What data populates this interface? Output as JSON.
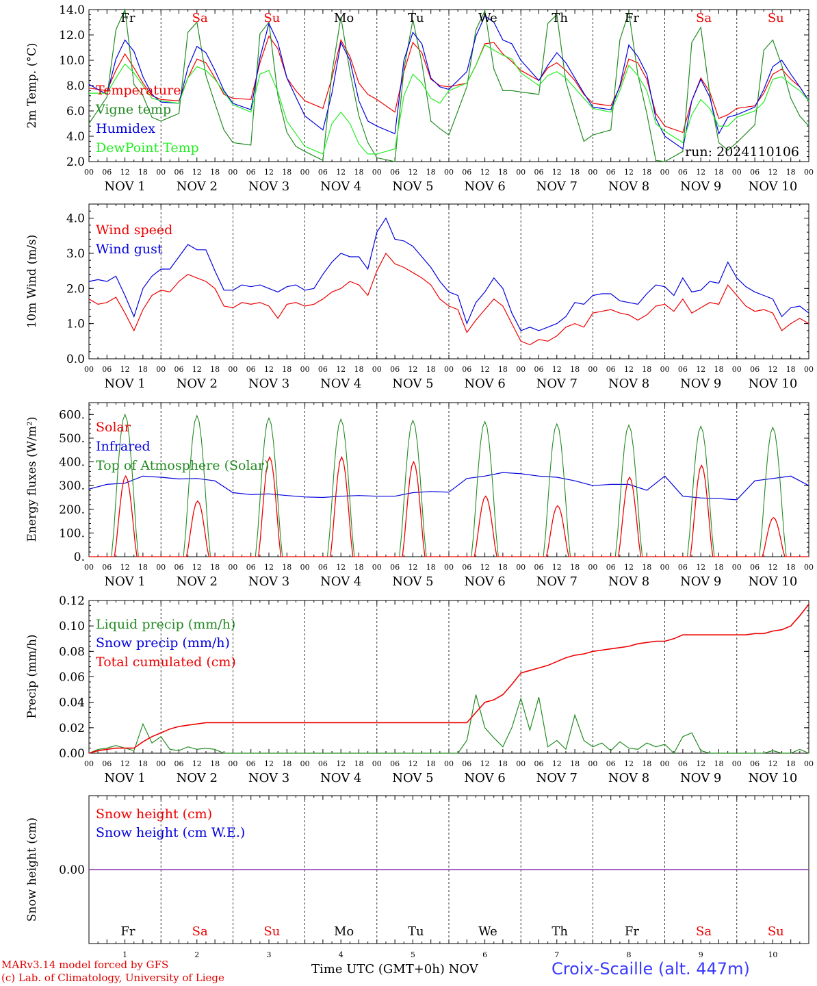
{
  "colors": {
    "red": "#ee0000",
    "green": "#228b22",
    "blue": "#0000dd",
    "lightgreen": "#22ee22",
    "purple": "#8833aa"
  },
  "days": [
    {
      "name": "Fr",
      "num": "1",
      "weekend": false
    },
    {
      "name": "Sa",
      "num": "2",
      "weekend": true
    },
    {
      "name": "Su",
      "num": "3",
      "weekend": true
    },
    {
      "name": "Mo",
      "num": "4",
      "weekend": false
    },
    {
      "name": "Tu",
      "num": "5",
      "weekend": false
    },
    {
      "name": "We",
      "num": "6",
      "weekend": false
    },
    {
      "name": "Th",
      "num": "7",
      "weekend": false
    },
    {
      "name": "Fr",
      "num": "8",
      "weekend": false
    },
    {
      "name": "Sa",
      "num": "9",
      "weekend": true
    },
    {
      "name": "Su",
      "num": "10",
      "weekend": true
    }
  ],
  "hour_ticks": [
    "00",
    "06",
    "12",
    "18"
  ],
  "month_label": "NOV",
  "run_label": "run: 2024110106",
  "footer": {
    "model": "MARv3.14 model forced by GFS",
    "lab": "(c) Lab. of Climatology, University of Liege",
    "xtitle": "Time UTC (GMT+0h)",
    "month": "NOV",
    "station": "Croix-Scaille (alt. 447m)"
  },
  "chart_data": [
    {
      "type": "line",
      "ylabel": "2m Temp. (°C)",
      "ylim": [
        2,
        14
      ],
      "yticks": [
        "2.0",
        "4.0",
        "6.0",
        "8.0",
        "10.0",
        "12.0",
        "14.0"
      ],
      "legend": [
        "Temperature",
        "Vigne temp",
        "Humidex",
        "DewPoint Temp"
      ],
      "x_hours": [
        0,
        6,
        9,
        12,
        15,
        18,
        21,
        24,
        30,
        33,
        36,
        39,
        42,
        45,
        48,
        54,
        57,
        60,
        63,
        66,
        69,
        72,
        78,
        81,
        84,
        87,
        90,
        93,
        96,
        102,
        105,
        108,
        111,
        114,
        117,
        120,
        126,
        129,
        132,
        135,
        138,
        141,
        144,
        150,
        153,
        156,
        159,
        162,
        165,
        168,
        174,
        177,
        180,
        183,
        186,
        189,
        192,
        198,
        201,
        204,
        207,
        210,
        213,
        216,
        222,
        225,
        228,
        231,
        234,
        237,
        240
      ],
      "series": [
        {
          "name": "Temperature",
          "color": "red",
          "values": [
            7.8,
            7.6,
            9.2,
            10.5,
            9.4,
            8.2,
            7.2,
            6.9,
            6.8,
            8.6,
            10.1,
            9.8,
            8.6,
            7.3,
            7.0,
            6.9,
            9.8,
            11.9,
            10.9,
            8.6,
            7.6,
            6.8,
            6.2,
            8.6,
            11.6,
            10.3,
            8.2,
            7.3,
            6.9,
            5.9,
            9.1,
            11.4,
            10.6,
            8.5,
            8.0,
            7.9,
            8.2,
            9.6,
            11.3,
            11.4,
            10.5,
            9.9,
            9.2,
            8.4,
            9.4,
            9.8,
            9.2,
            8.4,
            7.3,
            6.6,
            6.4,
            7.9,
            10.1,
            9.8,
            8.5,
            5.8,
            4.8,
            4.3,
            6.8,
            8.6,
            7.5,
            5.4,
            5.7,
            6.2,
            6.4,
            7.4,
            8.9,
            9.3,
            8.5,
            7.9,
            6.8
          ]
        },
        {
          "name": "Vigne temp",
          "color": "green",
          "values": [
            5.0,
            7.1,
            12.4,
            14.0,
            8.1,
            7.2,
            5.5,
            5.2,
            5.8,
            12.2,
            13.0,
            8.8,
            6.6,
            4.5,
            3.5,
            3.3,
            12.1,
            13.0,
            7.2,
            4.3,
            3.2,
            2.8,
            2.1,
            9.0,
            13.4,
            9.1,
            5.6,
            3.5,
            2.3,
            2.0,
            9.3,
            13.2,
            9.8,
            5.2,
            4.6,
            4.1,
            7.9,
            12.4,
            13.9,
            9.3,
            7.6,
            7.6,
            7.5,
            7.3,
            12.9,
            13.6,
            8.3,
            5.9,
            3.6,
            4.1,
            4.5,
            11.6,
            13.8,
            8.9,
            5.8,
            2.1,
            1.8,
            2.8,
            11.4,
            12.6,
            7.3,
            3.5,
            2.9,
            3.5,
            4.9,
            10.8,
            11.6,
            9.6,
            7.0,
            5.6,
            4.8
          ]
        },
        {
          "name": "Humidex",
          "color": "blue",
          "values": [
            8.1,
            7.3,
            10.1,
            11.6,
            10.7,
            8.7,
            7.3,
            6.7,
            6.6,
            9.4,
            11.1,
            10.6,
            9.2,
            7.6,
            6.6,
            6.1,
            10.2,
            12.9,
            11.4,
            8.6,
            7.1,
            5.6,
            4.5,
            7.4,
            11.4,
            10.0,
            6.8,
            5.2,
            4.8,
            4.2,
            10.0,
            12.2,
            11.3,
            8.6,
            7.9,
            7.7,
            9.1,
            11.9,
            13.5,
            13.0,
            11.6,
            11.3,
            10.0,
            8.4,
            9.6,
            10.6,
            9.8,
            8.6,
            7.4,
            6.3,
            6.1,
            8.0,
            11.2,
            10.3,
            8.9,
            5.4,
            4.0,
            3.0,
            6.8,
            8.5,
            7.1,
            4.2,
            5.5,
            5.7,
            6.3,
            7.7,
            9.5,
            10.0,
            8.9,
            7.9,
            6.8
          ]
        },
        {
          "name": "DewPoint Temp",
          "color": "lightgreen",
          "values": [
            7.4,
            7.4,
            8.6,
            9.7,
            9.0,
            8.0,
            7.0,
            6.8,
            6.6,
            8.6,
            9.5,
            9.2,
            8.5,
            7.5,
            6.5,
            5.9,
            8.9,
            9.2,
            7.5,
            5.2,
            4.2,
            3.2,
            2.6,
            5.0,
            5.9,
            5.0,
            3.4,
            2.6,
            2.6,
            3.0,
            7.2,
            8.9,
            8.2,
            7.0,
            6.6,
            7.6,
            8.2,
            9.6,
            11.2,
            10.8,
            10.4,
            10.1,
            9.0,
            8.0,
            8.8,
            9.1,
            8.6,
            7.8,
            7.0,
            6.2,
            5.9,
            7.6,
            9.6,
            8.8,
            7.6,
            5.0,
            4.4,
            3.5,
            5.7,
            6.9,
            6.2,
            4.8,
            4.8,
            5.5,
            6.0,
            6.7,
            8.5,
            8.7,
            8.1,
            7.6,
            6.8
          ]
        }
      ]
    },
    {
      "type": "line",
      "ylabel": "10m Wind (m/s)",
      "ylim": [
        0,
        4.4
      ],
      "yticks": [
        "0.0",
        "1.0",
        "2.0",
        "3.0",
        "4.0"
      ],
      "legend": [
        "Wind speed",
        "Wind gust"
      ],
      "x_hours": [
        0,
        3,
        6,
        9,
        12,
        15,
        18,
        21,
        24,
        27,
        30,
        33,
        36,
        39,
        42,
        45,
        48,
        51,
        54,
        57,
        60,
        63,
        66,
        69,
        72,
        75,
        78,
        81,
        84,
        87,
        90,
        93,
        96,
        99,
        102,
        105,
        108,
        111,
        114,
        117,
        120,
        123,
        126,
        129,
        132,
        135,
        138,
        141,
        144,
        147,
        150,
        153,
        156,
        159,
        162,
        165,
        168,
        171,
        174,
        177,
        180,
        183,
        186,
        189,
        192,
        195,
        198,
        201,
        204,
        207,
        210,
        213,
        216,
        219,
        222,
        225,
        228,
        231,
        234,
        237,
        240
      ],
      "series": [
        {
          "name": "Wind speed",
          "color": "red",
          "values": [
            1.7,
            1.55,
            1.6,
            1.75,
            1.3,
            0.8,
            1.4,
            1.8,
            1.95,
            1.9,
            2.2,
            2.4,
            2.3,
            2.2,
            2.0,
            1.5,
            1.45,
            1.6,
            1.55,
            1.6,
            1.5,
            1.15,
            1.55,
            1.6,
            1.5,
            1.55,
            1.7,
            1.9,
            2.0,
            2.2,
            2.1,
            1.8,
            2.5,
            3.0,
            2.7,
            2.6,
            2.45,
            2.3,
            2.1,
            1.7,
            1.5,
            1.4,
            0.75,
            1.1,
            1.4,
            1.7,
            1.5,
            1.0,
            0.5,
            0.4,
            0.55,
            0.5,
            0.65,
            0.9,
            1.0,
            0.9,
            1.3,
            1.35,
            1.4,
            1.3,
            1.25,
            1.1,
            1.25,
            1.5,
            1.55,
            1.35,
            1.7,
            1.3,
            1.45,
            1.6,
            1.55,
            2.1,
            1.8,
            1.5,
            1.35,
            1.4,
            1.3,
            0.8,
            1.0,
            1.15,
            1.0
          ]
        },
        {
          "name": "Wind gust",
          "color": "blue",
          "values": [
            2.2,
            2.25,
            2.2,
            2.35,
            1.8,
            1.2,
            2.0,
            2.35,
            2.55,
            2.55,
            2.9,
            3.25,
            3.1,
            3.1,
            2.5,
            1.95,
            1.95,
            2.1,
            2.05,
            2.1,
            2.0,
            1.9,
            2.05,
            2.1,
            1.95,
            2.0,
            2.4,
            2.75,
            3.0,
            2.9,
            2.9,
            2.55,
            3.6,
            4.0,
            3.4,
            3.35,
            3.2,
            2.9,
            2.6,
            2.2,
            1.9,
            1.8,
            1.0,
            1.6,
            1.9,
            2.3,
            2.0,
            1.3,
            0.8,
            0.9,
            0.8,
            0.9,
            1.0,
            1.2,
            1.6,
            1.55,
            1.8,
            1.85,
            1.85,
            1.65,
            1.6,
            1.55,
            1.85,
            2.1,
            2.05,
            1.8,
            2.3,
            1.9,
            1.95,
            2.2,
            2.15,
            2.75,
            2.3,
            2.05,
            1.9,
            1.8,
            1.7,
            1.2,
            1.45,
            1.5,
            1.3
          ]
        }
      ]
    },
    {
      "type": "line",
      "ylabel": "Energy fluxes (W/m²)",
      "ylim": [
        0,
        650
      ],
      "yticks": [
        "0.",
        "100.",
        "200.",
        "300.",
        "400.",
        "500.",
        "600."
      ],
      "legend": [
        "Solar",
        "Infrared",
        "Top of Atmosphere (Solar)"
      ],
      "series_kind": "diurnal",
      "peaks_solar": [
        340,
        235,
        420,
        420,
        400,
        255,
        215,
        335,
        385,
        165
      ],
      "peaks_toa": [
        600,
        595,
        585,
        580,
        575,
        570,
        560,
        555,
        550,
        545
      ],
      "x_hours": [
        0,
        6,
        12,
        18,
        24,
        30,
        36,
        42,
        48,
        54,
        60,
        66,
        72,
        78,
        84,
        90,
        96,
        102,
        108,
        114,
        120,
        126,
        132,
        138,
        144,
        150,
        156,
        162,
        168,
        174,
        180,
        186,
        192,
        198,
        204,
        210,
        216,
        222,
        228,
        234,
        240
      ],
      "series": [
        {
          "name": "Infrared",
          "color": "blue",
          "values": [
            285,
            305,
            310,
            340,
            335,
            328,
            330,
            320,
            270,
            262,
            265,
            258,
            252,
            250,
            255,
            258,
            255,
            255,
            270,
            275,
            272,
            330,
            340,
            355,
            350,
            340,
            335,
            320,
            300,
            305,
            305,
            280,
            340,
            255,
            248,
            245,
            240,
            320,
            330,
            340,
            300
          ]
        }
      ]
    },
    {
      "type": "line",
      "ylabel": "Precip (mm/h)",
      "ylim": [
        0,
        0.12
      ],
      "yticks": [
        "0.00",
        "0.02",
        "0.04",
        "0.06",
        "0.08",
        "0.10",
        "0.12"
      ],
      "legend": [
        "Liquid precip (mm/h)",
        "Snow precip (mm/h)",
        "Total cumulated (cm)"
      ],
      "x_hours": [
        0,
        3,
        6,
        9,
        12,
        15,
        18,
        21,
        24,
        27,
        30,
        33,
        36,
        39,
        42,
        45,
        48,
        51,
        54,
        57,
        60,
        63,
        66,
        69,
        72,
        75,
        78,
        81,
        84,
        87,
        90,
        93,
        96,
        99,
        102,
        105,
        108,
        111,
        114,
        117,
        120,
        123,
        126,
        129,
        132,
        135,
        138,
        141,
        144,
        147,
        150,
        153,
        156,
        159,
        162,
        165,
        168,
        171,
        174,
        177,
        180,
        183,
        186,
        189,
        192,
        195,
        198,
        201,
        204,
        207,
        210,
        213,
        216,
        219,
        222,
        225,
        228,
        231,
        234,
        237,
        240
      ],
      "series": [
        {
          "name": "Liquid precip (mm/h)",
          "color": "green",
          "values": [
            0,
            0.003,
            0.004,
            0.006,
            0.004,
            0.002,
            0.023,
            0.008,
            0.013,
            0.003,
            0.002,
            0.005,
            0.003,
            0.004,
            0.003,
            0,
            0,
            0,
            0,
            0,
            0,
            0,
            0,
            0,
            0,
            0,
            0,
            0,
            0,
            0,
            0,
            0,
            0,
            0,
            0,
            0,
            0,
            0,
            0,
            0,
            0,
            0,
            0.01,
            0.046,
            0.02,
            0.012,
            0.005,
            0.02,
            0.043,
            0.018,
            0.044,
            0.005,
            0.01,
            0.003,
            0.03,
            0.01,
            0.005,
            0.008,
            0.002,
            0.009,
            0.004,
            0.003,
            0.008,
            0.005,
            0.007,
            0,
            0.013,
            0.016,
            0.002,
            0,
            0,
            0,
            0,
            0,
            0,
            0,
            0.002,
            0,
            0,
            0.003,
            0
          ]
        },
        {
          "name": "Total cumulated (cm)",
          "color": "red",
          "values": [
            0,
            0.002,
            0.003,
            0.004,
            0.004,
            0.004,
            0.009,
            0.013,
            0.016,
            0.019,
            0.021,
            0.022,
            0.023,
            0.024,
            0.024,
            0.024,
            0.024,
            0.024,
            0.024,
            0.024,
            0.024,
            0.024,
            0.024,
            0.024,
            0.024,
            0.024,
            0.024,
            0.024,
            0.024,
            0.024,
            0.024,
            0.024,
            0.024,
            0.024,
            0.024,
            0.024,
            0.024,
            0.024,
            0.024,
            0.024,
            0.024,
            0.024,
            0.024,
            0.032,
            0.04,
            0.042,
            0.046,
            0.054,
            0.063,
            0.065,
            0.067,
            0.069,
            0.072,
            0.075,
            0.077,
            0.078,
            0.08,
            0.081,
            0.082,
            0.083,
            0.084,
            0.086,
            0.087,
            0.088,
            0.088,
            0.09,
            0.093,
            0.093,
            0.093,
            0.093,
            0.093,
            0.093,
            0.093,
            0.093,
            0.094,
            0.094,
            0.096,
            0.097,
            0.1,
            0.108,
            0.117
          ]
        }
      ]
    },
    {
      "type": "line",
      "ylabel": "Snow height (cm)",
      "yticks": [
        "0.00"
      ],
      "legend": [
        "Snow height (cm)",
        "Snow height (cm W.E.)"
      ],
      "x_hours": [
        0,
        240
      ],
      "series": [
        {
          "name": "Snow height (cm)",
          "color": "purple",
          "values": [
            0,
            0
          ]
        }
      ]
    }
  ]
}
